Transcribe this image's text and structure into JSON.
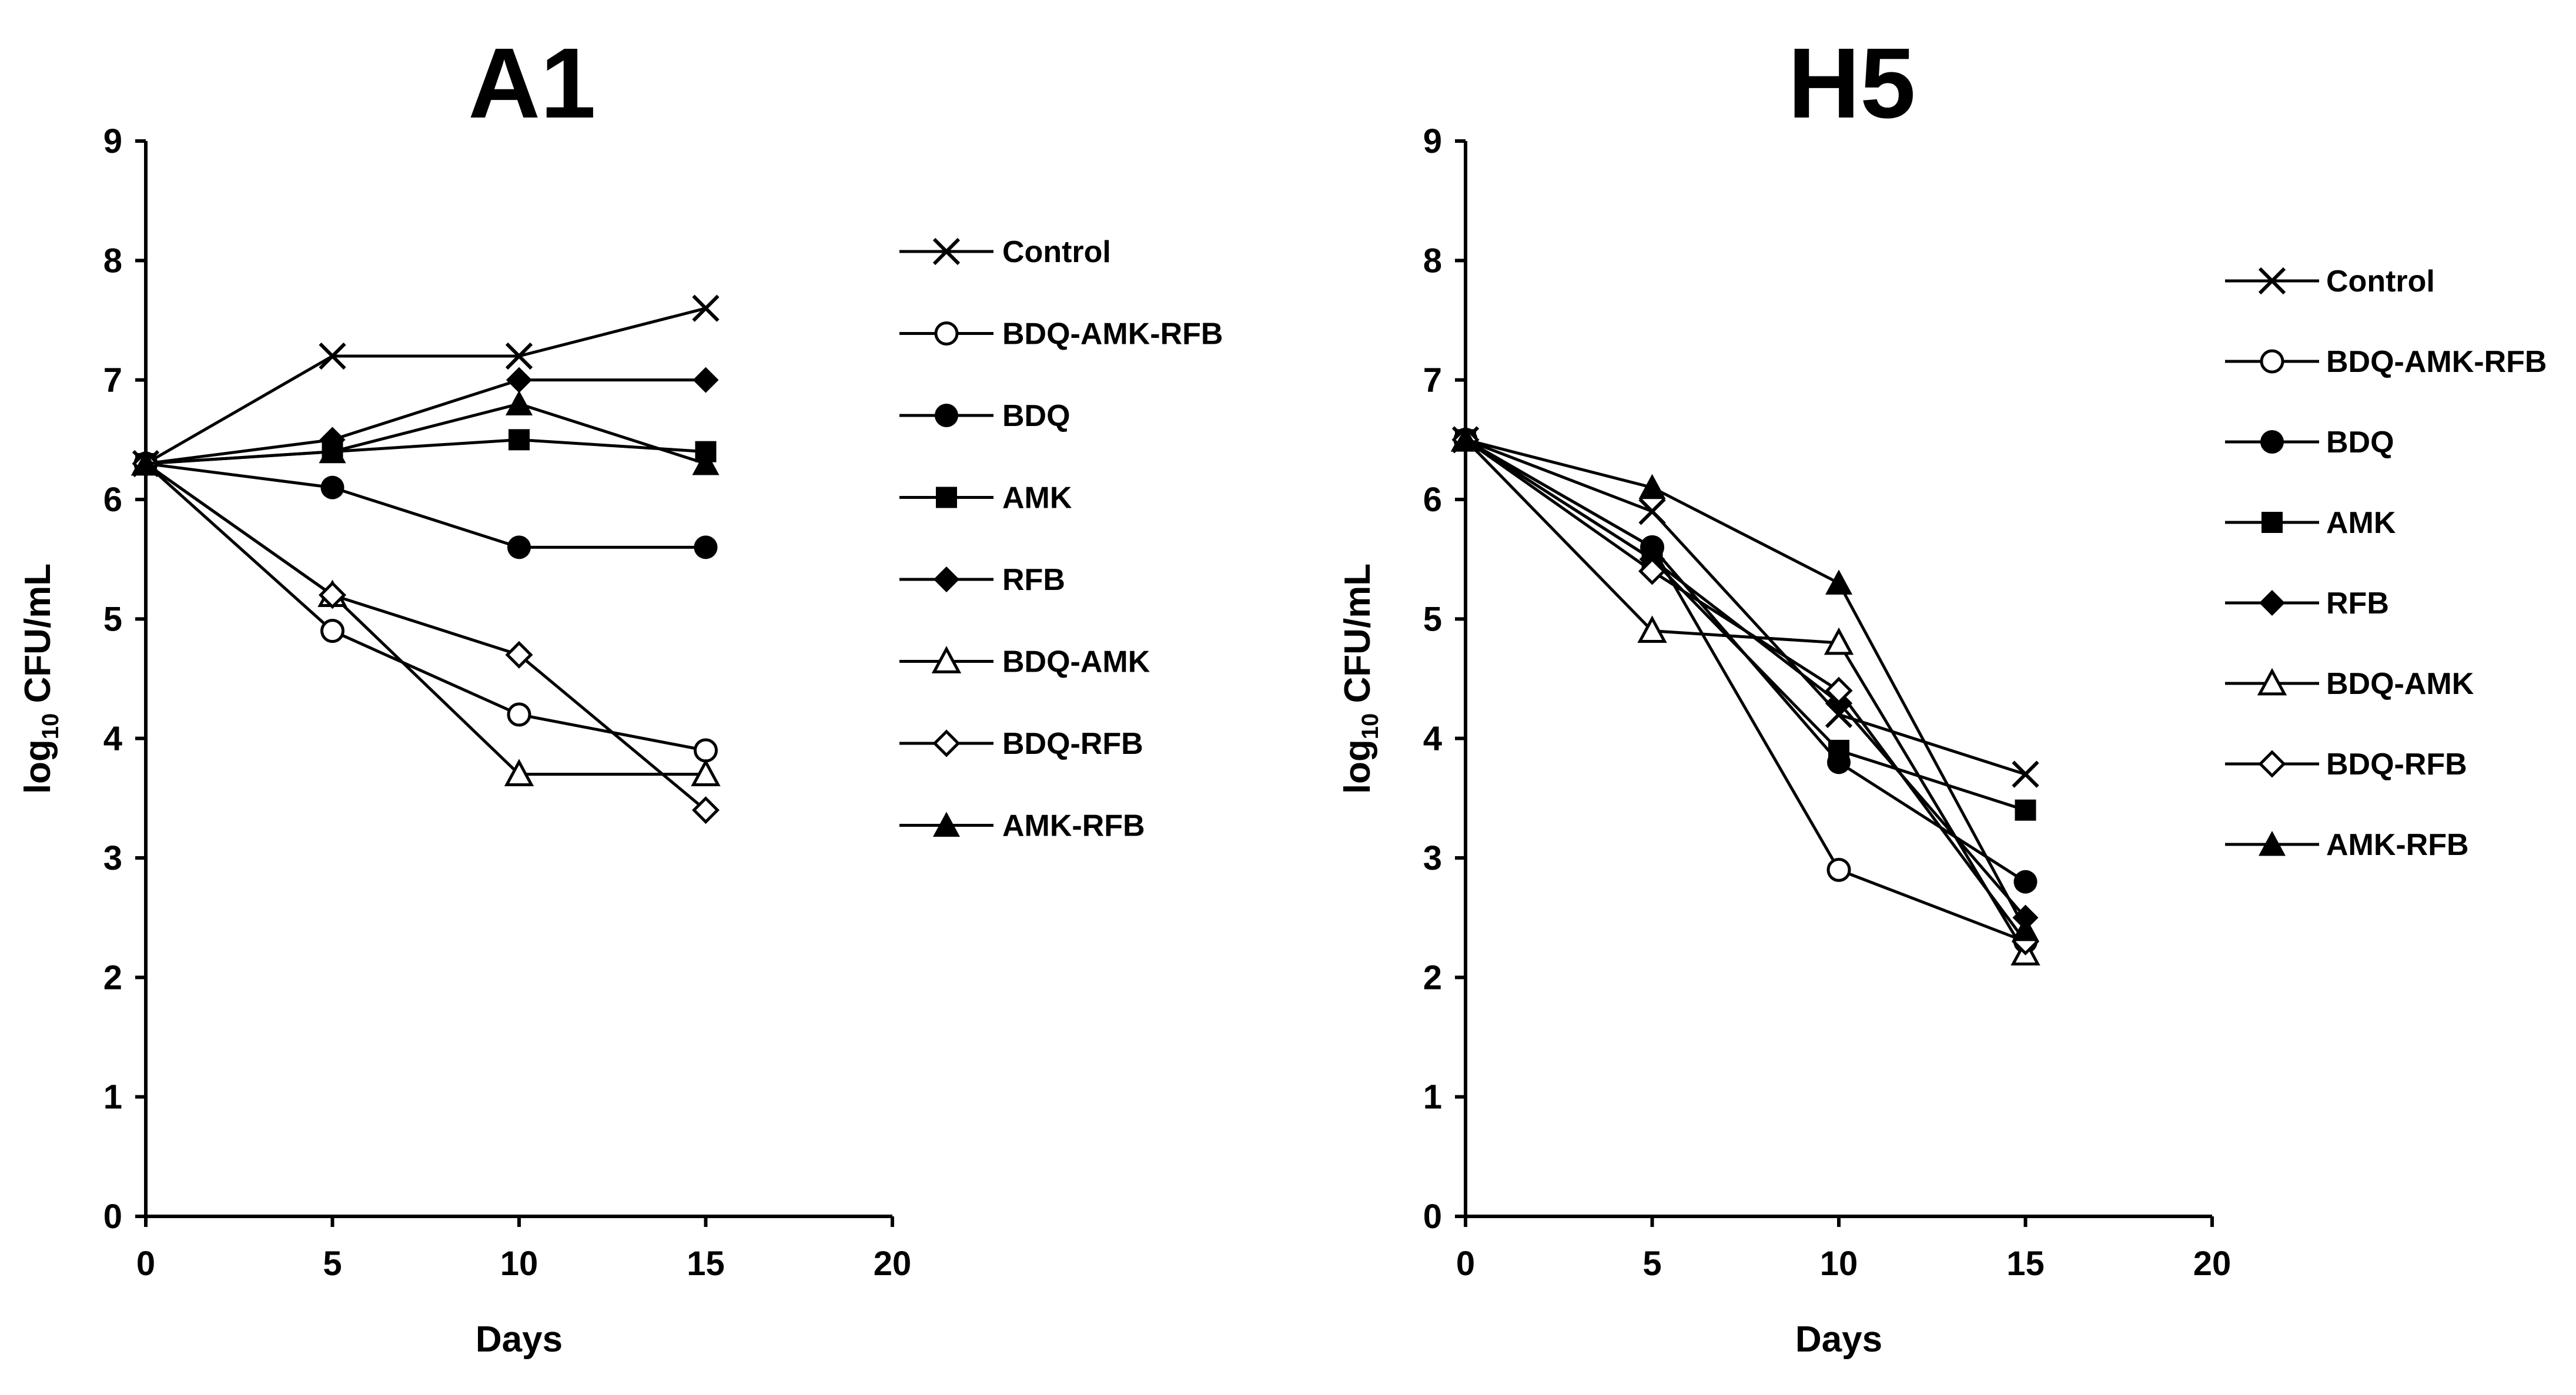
{
  "chart_data": [
    {
      "type": "line",
      "title": "A1",
      "xlabel": "Days",
      "ylabel_prefix": "log",
      "ylabel_sub": "10",
      "ylabel_suffix": " CFU/mL",
      "xlim": [
        0,
        20
      ],
      "ylim": [
        0,
        9
      ],
      "xticks": [
        "0",
        "5",
        "10",
        "15",
        "20"
      ],
      "yticks": [
        "0",
        "1",
        "2",
        "3",
        "4",
        "5",
        "6",
        "7",
        "8",
        "9"
      ],
      "x": [
        0,
        5,
        10,
        15
      ],
      "legend_position": "right",
      "series": [
        {
          "name": "Control",
          "marker": "x",
          "values": [
            6.3,
            7.2,
            7.2,
            7.6
          ]
        },
        {
          "name": "BDQ-AMK-RFB",
          "marker": "circle-open",
          "values": [
            6.3,
            4.9,
            4.2,
            3.9
          ]
        },
        {
          "name": "BDQ",
          "marker": "circle-filled",
          "values": [
            6.3,
            6.1,
            5.6,
            5.6
          ]
        },
        {
          "name": "AMK",
          "marker": "square-filled",
          "values": [
            6.3,
            6.4,
            6.5,
            6.4
          ]
        },
        {
          "name": "RFB",
          "marker": "diamond-filled",
          "values": [
            6.3,
            6.5,
            7.0,
            7.0
          ]
        },
        {
          "name": "BDQ-AMK",
          "marker": "triangle-open",
          "values": [
            6.3,
            5.2,
            3.7,
            3.7
          ]
        },
        {
          "name": "BDQ-RFB",
          "marker": "diamond-open",
          "values": [
            6.3,
            5.2,
            4.7,
            3.4
          ]
        },
        {
          "name": "AMK-RFB",
          "marker": "triangle-filled",
          "values": [
            6.3,
            6.4,
            6.8,
            6.3
          ]
        }
      ]
    },
    {
      "type": "line",
      "title": "H5",
      "xlabel": "Days",
      "ylabel_prefix": "log",
      "ylabel_sub": "10",
      "ylabel_suffix": " CFU/mL",
      "xlim": [
        0,
        20
      ],
      "ylim": [
        0,
        9
      ],
      "xticks": [
        "0",
        "5",
        "10",
        "15",
        "20"
      ],
      "yticks": [
        "0",
        "1",
        "2",
        "3",
        "4",
        "5",
        "6",
        "7",
        "8",
        "9"
      ],
      "x": [
        0,
        5,
        10,
        15
      ],
      "legend_position": "right",
      "series": [
        {
          "name": "Control",
          "marker": "x",
          "values": [
            6.5,
            5.9,
            4.2,
            3.7
          ]
        },
        {
          "name": "BDQ-AMK-RFB",
          "marker": "circle-open",
          "values": [
            6.5,
            5.6,
            2.9,
            2.3
          ]
        },
        {
          "name": "BDQ",
          "marker": "circle-filled",
          "values": [
            6.5,
            5.6,
            3.8,
            2.8
          ]
        },
        {
          "name": "AMK",
          "marker": "square-filled",
          "values": [
            6.5,
            5.5,
            3.9,
            3.4
          ]
        },
        {
          "name": "RFB",
          "marker": "diamond-filled",
          "values": [
            6.5,
            5.5,
            4.3,
            2.5
          ]
        },
        {
          "name": "BDQ-AMK",
          "marker": "triangle-open",
          "values": [
            6.5,
            4.9,
            4.8,
            2.2
          ]
        },
        {
          "name": "BDQ-RFB",
          "marker": "diamond-open",
          "values": [
            6.5,
            5.4,
            4.4,
            2.3
          ]
        },
        {
          "name": "AMK-RFB",
          "marker": "triangle-filled",
          "values": [
            6.5,
            6.1,
            5.3,
            2.4
          ]
        }
      ]
    }
  ]
}
